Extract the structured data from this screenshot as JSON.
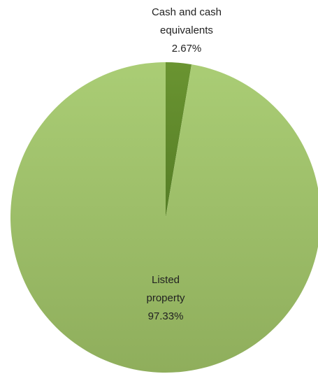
{
  "chart_data": {
    "type": "pie",
    "title": "",
    "start_angle_deg": 0,
    "direction": "clockwise",
    "slices": [
      {
        "name_lines": [
          "Cash and cash",
          "equivalents"
        ],
        "value": 2.67,
        "value_label": "2.67%",
        "color": "#5f8a2a",
        "label_position": "outside-top"
      },
      {
        "name_lines": [
          "Listed",
          "property"
        ],
        "value": 97.33,
        "value_label": "97.33%",
        "color": "#a3c66d",
        "label_position": "inside"
      }
    ],
    "legend": "none"
  }
}
